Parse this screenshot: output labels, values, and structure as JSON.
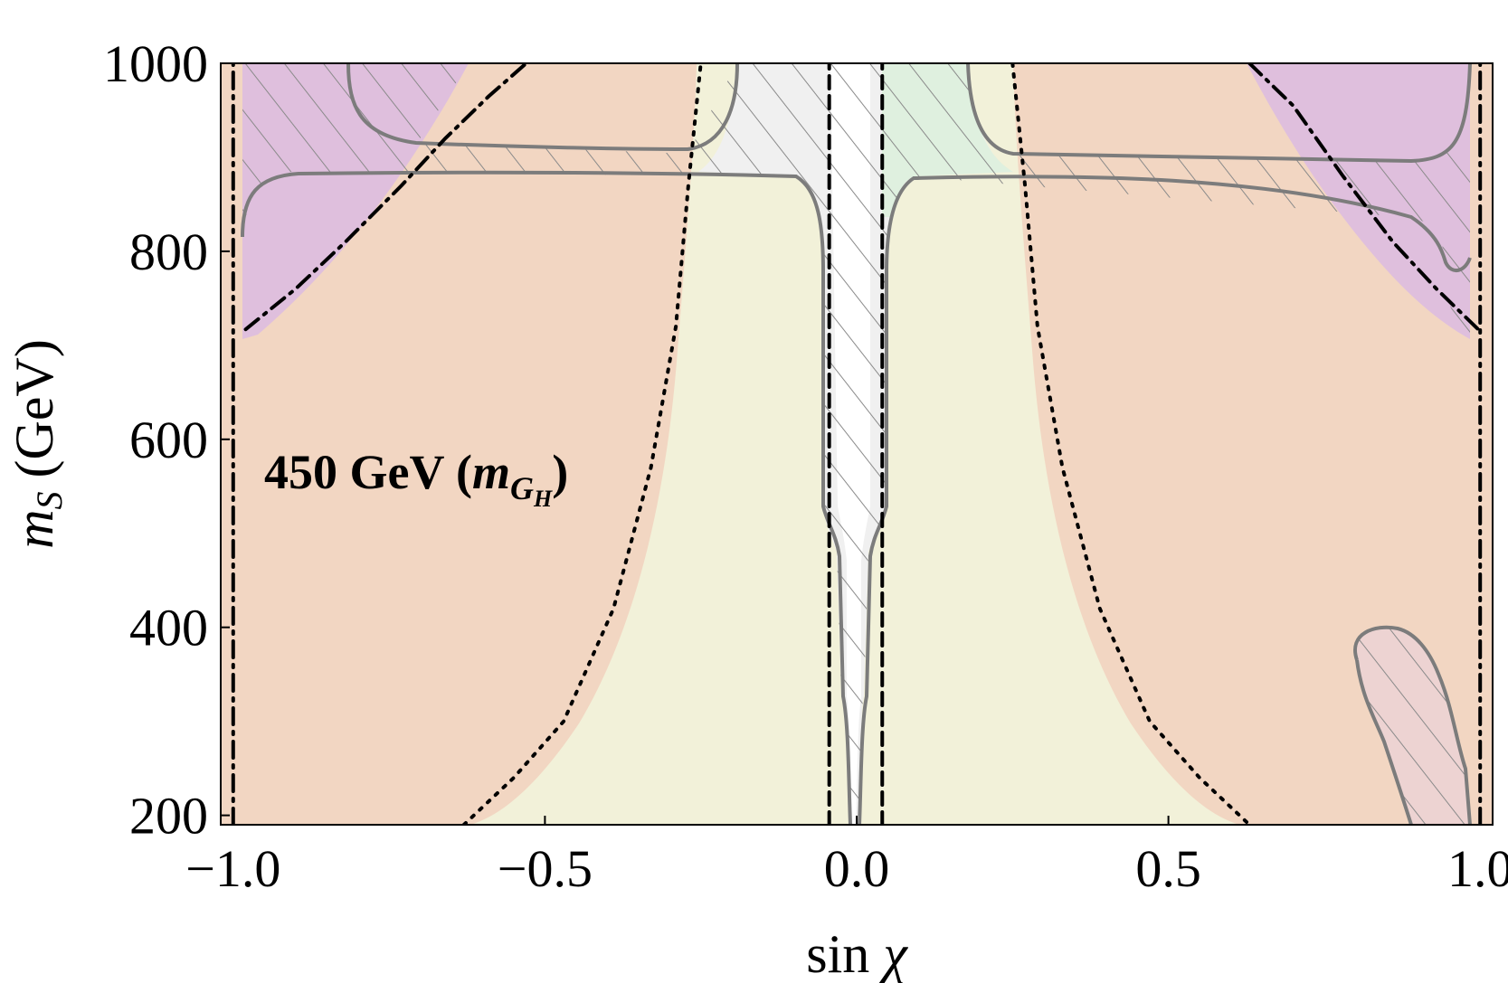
{
  "chart_data": {
    "type": "contour-region",
    "title": "",
    "annotation": {
      "text": "450 GeV (",
      "math": "m",
      "sub": "G",
      "subsub": "H",
      "close": ")"
    },
    "xlabel": {
      "prefix": "sin ",
      "symbol": "χ"
    },
    "ylabel": {
      "symbol": "m",
      "sub": "S",
      "units": " (GeV)"
    },
    "xlim": [
      -1.02,
      1.02
    ],
    "ylim": [
      190,
      1000
    ],
    "xticks": [
      {
        "value": -1.0,
        "label": "−1.0"
      },
      {
        "value": -0.5,
        "label": "−0.5"
      },
      {
        "value": 0.0,
        "label": "0.0"
      },
      {
        "value": 0.5,
        "label": "0.5"
      },
      {
        "value": 1.0,
        "label": "1.0"
      }
    ],
    "yticks": [
      {
        "value": 200,
        "label": "200"
      },
      {
        "value": 400,
        "label": "400"
      },
      {
        "value": 600,
        "label": "600"
      },
      {
        "value": 800,
        "label": "800"
      },
      {
        "value": 1000,
        "label": "1000"
      }
    ],
    "colors": {
      "excluded_orange": "#f2d6c2",
      "allowed_yellow": "#f2f1d9",
      "purple": "#ddbde0",
      "green": "#dcf0dc",
      "light_gray": "#f0f0f0",
      "contour_gray": "#7c7c7c",
      "hatch": "#8a8a8a"
    },
    "series": [
      {
        "name": "vertical dashed line left",
        "style": "dashed",
        "x": [
          -0.044,
          -0.044
        ],
        "y": [
          190,
          1000
        ]
      },
      {
        "name": "vertical dashed line right",
        "style": "dashed",
        "x": [
          0.041,
          0.041
        ],
        "y": [
          190,
          1000
        ]
      },
      {
        "name": "vertical dot-dashed line left",
        "style": "dotdash",
        "x": [
          -1.0,
          -1.0
        ],
        "y": [
          190,
          1000
        ]
      },
      {
        "name": "vertical dot-dashed line right",
        "style": "dotdash",
        "x": [
          1.0,
          1.0
        ],
        "y": [
          190,
          1000
        ]
      },
      {
        "name": "dotted boundary left",
        "style": "dotted",
        "x": [
          -0.63,
          -0.55,
          -0.47,
          -0.39,
          -0.33,
          -0.29,
          -0.27,
          -0.25
        ],
        "y": [
          190,
          240,
          300,
          420,
          570,
          720,
          870,
          1000
        ]
      },
      {
        "name": "dotted boundary right",
        "style": "dotted",
        "x": [
          0.25,
          0.27,
          0.29,
          0.33,
          0.39,
          0.47,
          0.55,
          0.63
        ],
        "y": [
          1000,
          870,
          720,
          570,
          420,
          300,
          240,
          190
        ]
      },
      {
        "name": "dot-dashed boundary left",
        "style": "dotdash",
        "x": [
          -0.98,
          -0.9,
          -0.82,
          -0.73,
          -0.66,
          -0.59,
          -0.53
        ],
        "y": [
          717,
          760,
          810,
          870,
          920,
          965,
          1000
        ]
      },
      {
        "name": "dot-dashed boundary right",
        "style": "dotdash",
        "x": [
          0.63,
          0.7,
          0.78,
          0.86,
          0.93,
          1.0
        ],
        "y": [
          1000,
          955,
          880,
          810,
          760,
          715
        ]
      }
    ]
  }
}
